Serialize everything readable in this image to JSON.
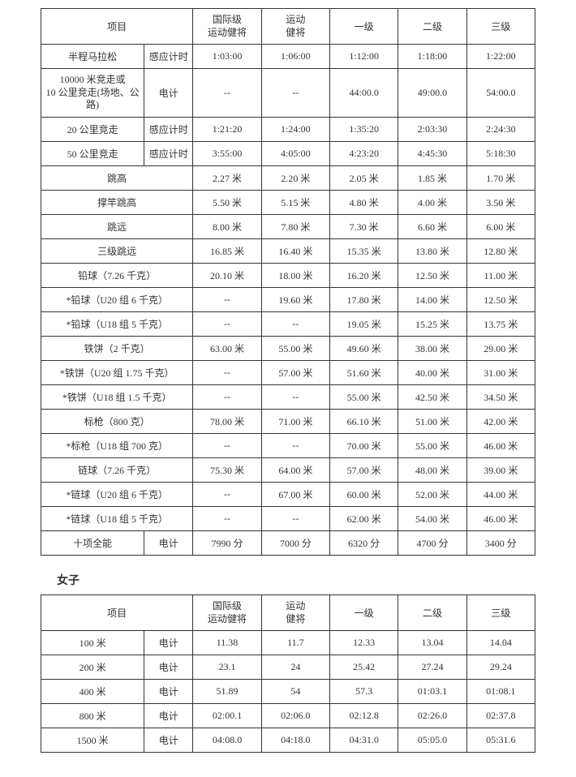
{
  "table1": {
    "headers": {
      "event": "项目",
      "intl": "国际级\n运动健将",
      "master": "运动\n健将",
      "lvl1": "一级",
      "lvl2": "二级",
      "lvl3": "三级"
    },
    "rows": [
      {
        "event": "半程马拉松",
        "sub": "感应计时",
        "intl": "1:03:00",
        "master": "1:06:00",
        "lvl1": "1:12:00",
        "lvl2": "1:18:00",
        "lvl3": "1:22:00"
      },
      {
        "event": "10000 米竞走或\n10 公里竞走(场地、公路)",
        "sub": "电计",
        "intl": "--",
        "master": "--",
        "lvl1": "44:00.0",
        "lvl2": "49:00.0",
        "lvl3": "54:00.0"
      },
      {
        "event": "20 公里竞走",
        "sub": "感应计时",
        "intl": "1:21:20",
        "master": "1:24:00",
        "lvl1": "1:35:20",
        "lvl2": "2:03:30",
        "lvl3": "2:24:30"
      },
      {
        "event": "50 公里竞走",
        "sub": "感应计时",
        "intl": "3:55:00",
        "master": "4:05:00",
        "lvl1": "4:23:20",
        "lvl2": "4:45:30",
        "lvl3": "5:18:30"
      },
      {
        "event": "跳高",
        "span": true,
        "intl": "2.27 米",
        "master": "2.20 米",
        "lvl1": "2.05 米",
        "lvl2": "1.85 米",
        "lvl3": "1.70 米"
      },
      {
        "event": "撑竿跳高",
        "span": true,
        "intl": "5.50 米",
        "master": "5.15 米",
        "lvl1": "4.80 米",
        "lvl2": "4.00 米",
        "lvl3": "3.50 米"
      },
      {
        "event": "跳远",
        "span": true,
        "intl": "8.00 米",
        "master": "7.80 米",
        "lvl1": "7.30 米",
        "lvl2": "6.60 米",
        "lvl3": "6.00 米"
      },
      {
        "event": "三级跳远",
        "span": true,
        "intl": "16.85 米",
        "master": "16.40 米",
        "lvl1": "15.35 米",
        "lvl2": "13.80 米",
        "lvl3": "12.80 米"
      },
      {
        "event": "铅球（7.26 千克）",
        "span": true,
        "intl": "20.10 米",
        "master": "18.00 米",
        "lvl1": "16.20 米",
        "lvl2": "12.50 米",
        "lvl3": "11.00 米"
      },
      {
        "event": "*铅球（U20 组 6 千克）",
        "span": true,
        "intl": "--",
        "master": "19.60 米",
        "lvl1": "17.80 米",
        "lvl2": "14.00 米",
        "lvl3": "12.50 米"
      },
      {
        "event": "*铅球（U18 组 5 千克）",
        "span": true,
        "intl": "--",
        "master": "--",
        "lvl1": "19.05 米",
        "lvl2": "15.25 米",
        "lvl3": "13.75 米"
      },
      {
        "event": "铁饼（2 千克）",
        "span": true,
        "intl": "63.00 米",
        "master": "55.00 米",
        "lvl1": "49.60 米",
        "lvl2": "38.00 米",
        "lvl3": "29.00 米"
      },
      {
        "event": "*铁饼（U20 组 1.75 千克）",
        "span": true,
        "intl": "--",
        "master": "57.00 米",
        "lvl1": "51.60 米",
        "lvl2": "40.00 米",
        "lvl3": "31.00 米"
      },
      {
        "event": "*铁饼（U18 组 1.5 千克）",
        "span": true,
        "intl": "--",
        "master": "--",
        "lvl1": "55.00 米",
        "lvl2": "42.50 米",
        "lvl3": "34.50 米"
      },
      {
        "event": "标枪（800 克）",
        "span": true,
        "intl": "78.00 米",
        "master": "71.00 米",
        "lvl1": "66.10 米",
        "lvl2": "51.00 米",
        "lvl3": "42.00 米"
      },
      {
        "event": "*标枪（U18 组 700 克）",
        "span": true,
        "intl": "--",
        "master": "--",
        "lvl1": "70.00 米",
        "lvl2": "55.00 米",
        "lvl3": "46.00 米"
      },
      {
        "event": "链球（7.26 千克）",
        "span": true,
        "intl": "75.30 米",
        "master": "64.00 米",
        "lvl1": "57.00 米",
        "lvl2": "48.00 米",
        "lvl3": "39.00 米"
      },
      {
        "event": "*链球（U20 组 6 千克）",
        "span": true,
        "intl": "--",
        "master": "67.00 米",
        "lvl1": "60.00 米",
        "lvl2": "52.00 米",
        "lvl3": "44.00 米"
      },
      {
        "event": "*链球（U18 组 5 千克）",
        "span": true,
        "intl": "--",
        "master": "--",
        "lvl1": "62.00 米",
        "lvl2": "54.00 米",
        "lvl3": "46.00 米"
      },
      {
        "event": "十项全能",
        "sub": "电计",
        "intl": "7990 分",
        "master": "7000 分",
        "lvl1": "6320 分",
        "lvl2": "4700 分",
        "lvl3": "3400 分"
      }
    ]
  },
  "section2_title": "女子",
  "table2": {
    "headers": {
      "event": "项目",
      "intl": "国际级\n运动健将",
      "master": "运动\n健将",
      "lvl1": "一级",
      "lvl2": "二级",
      "lvl3": "三级"
    },
    "rows": [
      {
        "event": "100 米",
        "sub": "电计",
        "intl": "11.38",
        "master": "11.7",
        "lvl1": "12.33",
        "lvl2": "13.04",
        "lvl3": "14.04"
      },
      {
        "event": "200 米",
        "sub": "电计",
        "intl": "23.1",
        "master": "24",
        "lvl1": "25.42",
        "lvl2": "27.24",
        "lvl3": "29.24"
      },
      {
        "event": "400 米",
        "sub": "电计",
        "intl": "51.89",
        "master": "54",
        "lvl1": "57.3",
        "lvl2": "01:03.1",
        "lvl3": "01:08.1"
      },
      {
        "event": "800 米",
        "sub": "电计",
        "intl": "02:00.1",
        "master": "02:06.0",
        "lvl1": "02:12.8",
        "lvl2": "02:26.0",
        "lvl3": "02:37.8"
      },
      {
        "event": "1500 米",
        "sub": "电计",
        "intl": "04:08.0",
        "master": "04:18.0",
        "lvl1": "04:31.0",
        "lvl2": "05:05.0",
        "lvl3": "05:31.6"
      }
    ]
  },
  "styles": {
    "font_family": "SimSun",
    "font_size_body": 12,
    "font_size_title": 14,
    "border_color": "#333333",
    "text_color": "#333333",
    "background_color": "#ffffff"
  }
}
